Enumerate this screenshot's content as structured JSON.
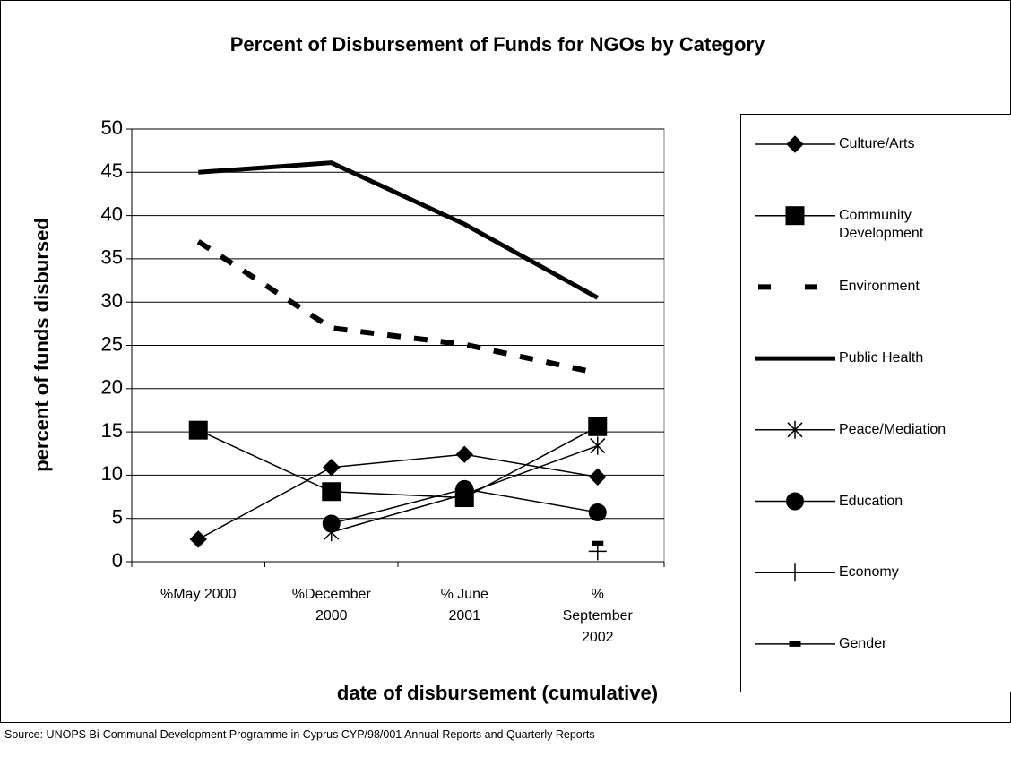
{
  "chart_data": {
    "type": "line",
    "title": "Percent of Disbursement of Funds for NGOs by Category",
    "x_label": "date of disbursement (cumulative)",
    "y_label": "percent of funds disbursed",
    "source": "Source: UNOPS Bi-Communal Development Programme in Cyprus CYP/98/001 Annual Reports and Quarterly Reports",
    "categories": [
      "%May 2000",
      "%December 2000",
      "% June 2001",
      "% September 2002"
    ],
    "ylim": [
      0,
      50
    ],
    "yticks": [
      0,
      5,
      10,
      15,
      20,
      25,
      30,
      35,
      40,
      45,
      50
    ],
    "grid": true,
    "legend": "right",
    "series": [
      {
        "name": "Culture/Arts",
        "color": "#000000",
        "marker": "diamond",
        "values": [
          2.6,
          10.9,
          12.4,
          9.8
        ]
      },
      {
        "name": "Community Development",
        "color": "#000000",
        "marker": "square",
        "values": [
          15.2,
          8.1,
          7.4,
          15.6
        ]
      },
      {
        "name": "Environment",
        "color": "#000000",
        "dashed": true,
        "values": [
          37,
          27,
          25.1,
          21.8
        ]
      },
      {
        "name": "Public Health",
        "color": "#000000",
        "thick": true,
        "values": [
          45,
          46.1,
          39,
          30.5
        ]
      },
      {
        "name": "Peace/Mediation",
        "color": "#000000",
        "marker": "asterisk",
        "values": [
          null,
          3.4,
          7.8,
          13.4
        ]
      },
      {
        "name": "Education",
        "color": "#000000",
        "marker": "circle",
        "values": [
          null,
          4.4,
          8.4,
          5.7
        ]
      },
      {
        "name": "Economy",
        "color": "#000000",
        "marker": "plus",
        "values": [
          null,
          null,
          null,
          1.2
        ]
      },
      {
        "name": "Gender",
        "color": "#000000",
        "marker": "dash",
        "values": [
          null,
          null,
          null,
          2.1
        ]
      }
    ]
  }
}
